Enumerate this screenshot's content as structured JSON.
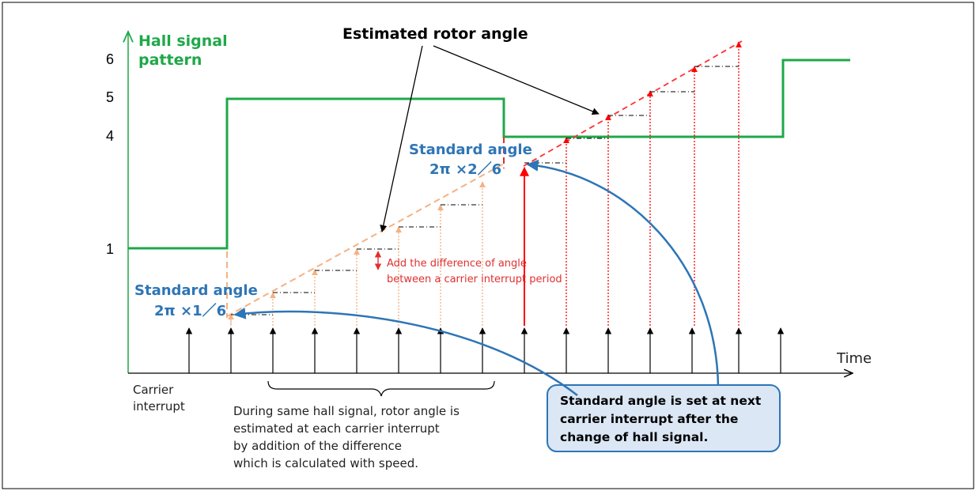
{
  "diagram": {
    "y_axis_title_line1": "Hall signal",
    "y_axis_title_line2": "pattern",
    "y_ticks": [
      "6",
      "5",
      "4",
      "1"
    ],
    "x_axis_label": "Time",
    "carrier_label_line1": "Carrier",
    "carrier_label_line2": "interrupt",
    "estimated_rotor_angle_label": "Estimated rotor angle",
    "standard_angle_1": {
      "title": "Standard angle",
      "formula": "2π ×1／6"
    },
    "standard_angle_2": {
      "title": "Standard angle",
      "formula": "2π ×2／6"
    },
    "difference_note_line1": "Add the difference of angle",
    "difference_note_line2": "between a carrier interrupt period",
    "brace_note": [
      "During same hall signal, rotor angle is",
      "estimated  at each carrier interrupt",
      "by addition of the difference",
      "which is calculated with speed."
    ],
    "callout": [
      "Standard angle is set at next",
      "carrier interrupt after the",
      "change of hall signal."
    ],
    "colors": {
      "hall_signal": "#1fa84a",
      "standard_angle_text": "#2e75b6",
      "callout_border": "#2e75b6",
      "callout_fill": "#dbe7f5",
      "estimated_angle_first": "#f5b183",
      "estimated_angle_second": "#ff0000",
      "annotation_red": "#e03030"
    }
  }
}
